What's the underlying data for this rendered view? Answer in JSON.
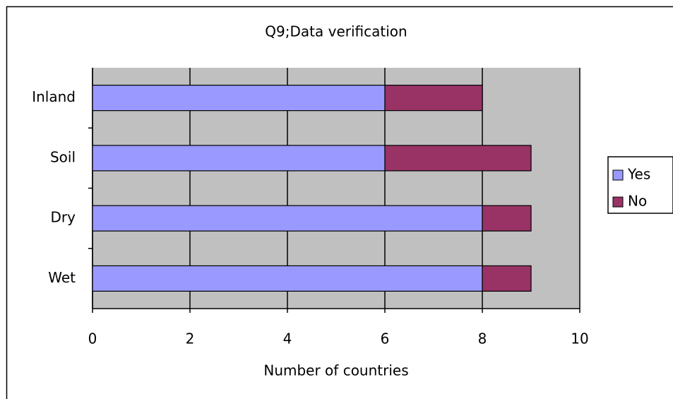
{
  "chart_data": {
    "type": "bar",
    "orientation": "horizontal",
    "stacked": true,
    "title": "Q9;Data verification",
    "x_label": "Number of countries",
    "categories": [
      "Inland",
      "Soil",
      "Dry",
      "Wet"
    ],
    "series": [
      {
        "name": "Yes",
        "color": "#9999ff",
        "values": [
          6,
          6,
          8,
          8
        ]
      },
      {
        "name": "No",
        "color": "#993366",
        "values": [
          2,
          3,
          1,
          1
        ]
      }
    ],
    "xlim": [
      0,
      10
    ],
    "xticks": [
      0,
      2,
      4,
      6,
      8,
      10
    ],
    "grid": true,
    "legend": "right"
  }
}
